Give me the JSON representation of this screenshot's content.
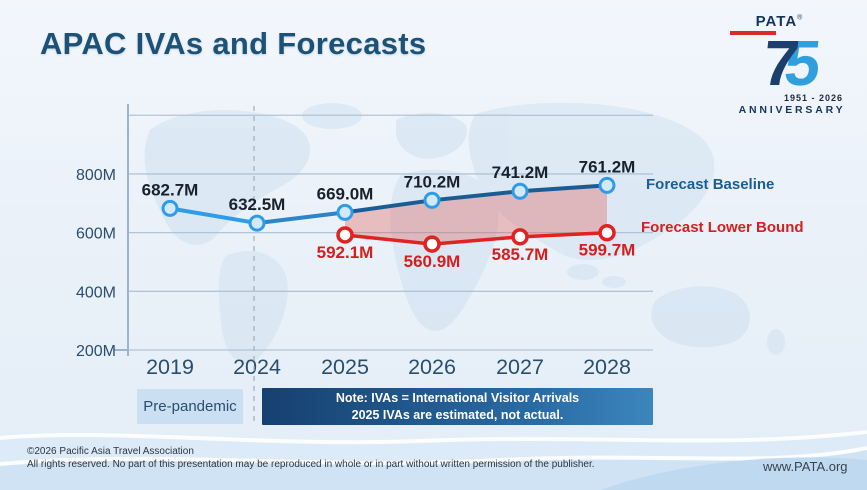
{
  "slide": {
    "title": "APAC IVAs and Forecasts",
    "footer_line1": "©2026 Pacific Asia Travel Association",
    "footer_line2": "All rights reserved. No part of this presentation may be reproduced in whole or in part without written permission of the publisher.",
    "website": "www.PATA.org"
  },
  "logo": {
    "brand": "PATA",
    "registered": "®",
    "digit_7": "7",
    "digit_5": "5",
    "years": "1951 - 2026",
    "anniversary": "ANNIVERSARY",
    "colors": {
      "digit7": "#1c3f6e",
      "digit5": "#2fa0dd",
      "redbar": "#d92b2b"
    }
  },
  "labels": {
    "pre_pandemic": "Pre-pandemic",
    "note_line1": "Note: IVAs = International Visitor Arrivals",
    "note_line2": "2025 IVAs are estimated, not actual."
  },
  "chart_data": {
    "type": "line",
    "title": "APAC IVAs and Forecasts",
    "categories": [
      "2019",
      "2024",
      "2025",
      "2026",
      "2027",
      "2028"
    ],
    "series": [
      {
        "name": "Forecast Baseline",
        "values": [
          682.7,
          632.5,
          669.0,
          710.2,
          741.2,
          761.2
        ],
        "point_labels": [
          "682.7M",
          "632.5M",
          "669.0M",
          "710.2M",
          "741.2M",
          "761.2M"
        ],
        "segment_colors": [
          "#2f9ce9",
          "#2b85c8",
          "#1a5d94",
          "#1a5d94",
          "#1a5d94"
        ],
        "marker_fill": "#d3e9fa",
        "marker_stroke": "#2f9ce9",
        "label_color": "#18222e"
      },
      {
        "name": "Forecast Lower Bound",
        "values": [
          null,
          null,
          592.1,
          560.9,
          585.7,
          599.7
        ],
        "point_labels": [
          null,
          null,
          "592.1M",
          "560.9M",
          "585.7M",
          "599.7M"
        ],
        "line_color": "#e02222",
        "marker_fill": "#ffffff",
        "marker_stroke": "#e02222",
        "label_color": "#d41f1f"
      }
    ],
    "band_between_series_from_category": "2025",
    "band_fill": "rgba(224,70,60,0.30)",
    "divider_dashed_at_category": "2024",
    "ylabel_ticks": [
      "200M",
      "400M",
      "600M",
      "800M"
    ],
    "ytick_values": [
      200,
      400,
      600,
      800
    ],
    "ylim": [
      200,
      1000
    ],
    "unit": "M",
    "grid": true,
    "legend_position": "right"
  }
}
